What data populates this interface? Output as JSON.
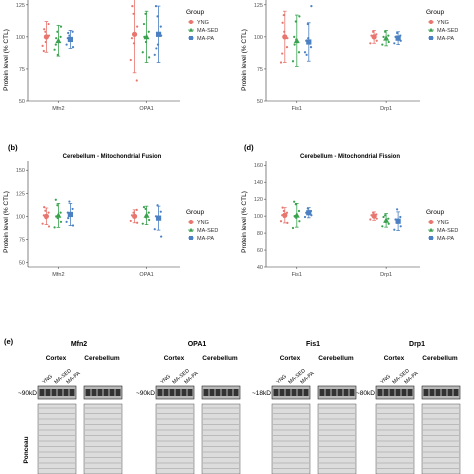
{
  "groups": [
    {
      "name": "YNG",
      "color": "#e8766f"
    },
    {
      "name": "MA-SED",
      "color": "#3aa24f"
    },
    {
      "name": "MA-PA",
      "color": "#4b80c2"
    }
  ],
  "panels": [
    {
      "id": "a",
      "label": "",
      "title": "",
      "ylabel": "Protein level (% CTL)",
      "yticks": [
        50,
        75,
        100,
        125
      ],
      "ylim": [
        50,
        135
      ],
      "legend_title": "Group",
      "chart_data": {
        "type": "scatter",
        "categories": [
          "Mfn2",
          "OPA1"
        ],
        "series": [
          {
            "name": "YNG",
            "means": [
              100,
              102
            ],
            "sd": [
              12,
              30
            ],
            "points": [
              [
                93,
                104,
                96,
                110,
                101,
                89,
                106
              ],
              [
                82,
                118,
                95,
                66,
                108,
                99,
                124
              ]
            ]
          },
          {
            "name": "MA-SED",
            "means": [
              97,
              100
            ],
            "sd": [
              12,
              20
            ],
            "points": [
              [
                90,
                104,
                86,
                100,
                108,
                94,
                99
              ],
              [
                88,
                118,
                96,
                104,
                84,
                110,
                100
              ]
            ]
          },
          {
            "name": "MA-PA",
            "means": [
              98,
              102
            ],
            "sd": [
              7,
              22
            ],
            "points": [
              [
                94,
                101,
                97,
                104,
                92,
                99,
                103
              ],
              [
                86,
                116,
                94,
                108,
                101,
                124,
                91
              ]
            ]
          }
        ]
      }
    },
    {
      "id": "c",
      "label": "",
      "title": "",
      "ylabel": "Protein level (% CTL)",
      "yticks": [
        50,
        75,
        100,
        125
      ],
      "ylim": [
        50,
        135
      ],
      "legend_title": "Group",
      "chart_data": {
        "type": "scatter",
        "categories": [
          "Fis1",
          "Drp1"
        ],
        "series": [
          {
            "name": "YNG",
            "means": [
              100,
              100
            ],
            "sd": [
              20,
              5
            ],
            "points": [
              [
                80,
                117,
                104,
                92,
                99,
                87,
                111
              ],
              [
                95,
                104,
                99,
                102,
                97,
                101
              ]
            ]
          },
          {
            "name": "MA-SED",
            "means": [
              97,
              99
            ],
            "sd": [
              20,
              6
            ],
            "points": [
              [
                81,
                112,
                98,
                88,
                116,
                100,
                94
              ],
              [
                94,
                104,
                98,
                101,
                96,
                100
              ]
            ]
          },
          {
            "name": "MA-PA",
            "means": [
              96,
              99
            ],
            "sd": [
              15,
              5
            ],
            "points": [
              [
                88,
                110,
                99,
                92,
                124,
                97,
                86
              ],
              [
                95,
                103,
                98,
                101,
                97,
                100
              ]
            ]
          }
        ]
      }
    },
    {
      "id": "b",
      "label": "(b)",
      "title": "Cerebellum - Mitochondrial Fusion",
      "ylabel": "Protein level (% CTL)",
      "yticks": [
        50,
        75,
        100,
        125,
        150
      ],
      "ylim": [
        45,
        160
      ],
      "legend_title": "Group",
      "chart_data": {
        "type": "scatter",
        "categories": [
          "Mfn2",
          "OPA1"
        ],
        "series": [
          {
            "name": "YNG",
            "means": [
              100,
              100
            ],
            "sd": [
              9,
              7
            ],
            "points": [
              [
                92,
                106,
                98,
                104,
                89,
                101,
                110
              ],
              [
                95,
                104,
                99,
                107,
                93,
                101
              ]
            ]
          },
          {
            "name": "MA-SED",
            "means": [
              101,
              101
            ],
            "sd": [
              13,
              10
            ],
            "points": [
              [
                88,
                112,
                98,
                104,
                94,
                118,
                100
              ],
              [
                92,
                108,
                99,
                104,
                96,
                110
              ]
            ]
          },
          {
            "name": "MA-PA",
            "means": [
              102,
              98
            ],
            "sd": [
              12,
              13
            ],
            "points": [
              [
                94,
                116,
                101,
                108,
                90,
                104,
                98
              ],
              [
                86,
                112,
                97,
                105,
                78,
                100
              ]
            ]
          }
        ]
      }
    },
    {
      "id": "d",
      "label": "(d)",
      "title": "Cerebellum - Mitochondrial Fission",
      "ylabel": "Protein level (% CTL)",
      "yticks": [
        40,
        60,
        80,
        100,
        120,
        140,
        160
      ],
      "ylim": [
        40,
        165
      ],
      "legend_title": "Group",
      "chart_data": {
        "type": "scatter",
        "categories": [
          "Fis1",
          "Drp1"
        ],
        "series": [
          {
            "name": "YNG",
            "means": [
              101,
              100
            ],
            "sd": [
              9,
              5
            ],
            "points": [
              [
                94,
                106,
                99,
                104,
                92,
                101,
                110
              ],
              [
                96,
                104,
                99,
                102,
                97,
                101
              ]
            ]
          },
          {
            "name": "MA-SED",
            "means": [
              101,
              95
            ],
            "sd": [
              14,
              8
            ],
            "points": [
              [
                86,
                114,
                98,
                106,
                94,
                117,
                100
              ],
              [
                88,
                101,
                93,
                97,
                91,
                99
              ]
            ]
          },
          {
            "name": "MA-PA",
            "means": [
              104,
              94
            ],
            "sd": [
              6,
              11
            ],
            "points": [
              [
                99,
                109,
                103,
                106,
                101,
                104
              ],
              [
                84,
                108,
                92,
                99,
                88,
                96
              ]
            ]
          }
        ]
      }
    }
  ],
  "blots": {
    "label": "(e)",
    "left_label": "Ponceau",
    "lane_labels": [
      "YNG",
      "MA-SED",
      "MA-PA"
    ],
    "sections": [
      {
        "protein": "Mfn2",
        "kd": "~90kD",
        "tissues": [
          "Cortex",
          "Cerebellum"
        ]
      },
      {
        "protein": "OPA1",
        "kd": "~90kD",
        "tissues": [
          "Cortex",
          "Cerebellum"
        ]
      },
      {
        "protein": "Fis1",
        "kd": "~18kD",
        "tissues": [
          "Cortex",
          "Cerebellum"
        ]
      },
      {
        "protein": "Drp1",
        "kd": "~80kD",
        "tissues": [
          "Cortex",
          "Cerebellum"
        ]
      }
    ]
  }
}
